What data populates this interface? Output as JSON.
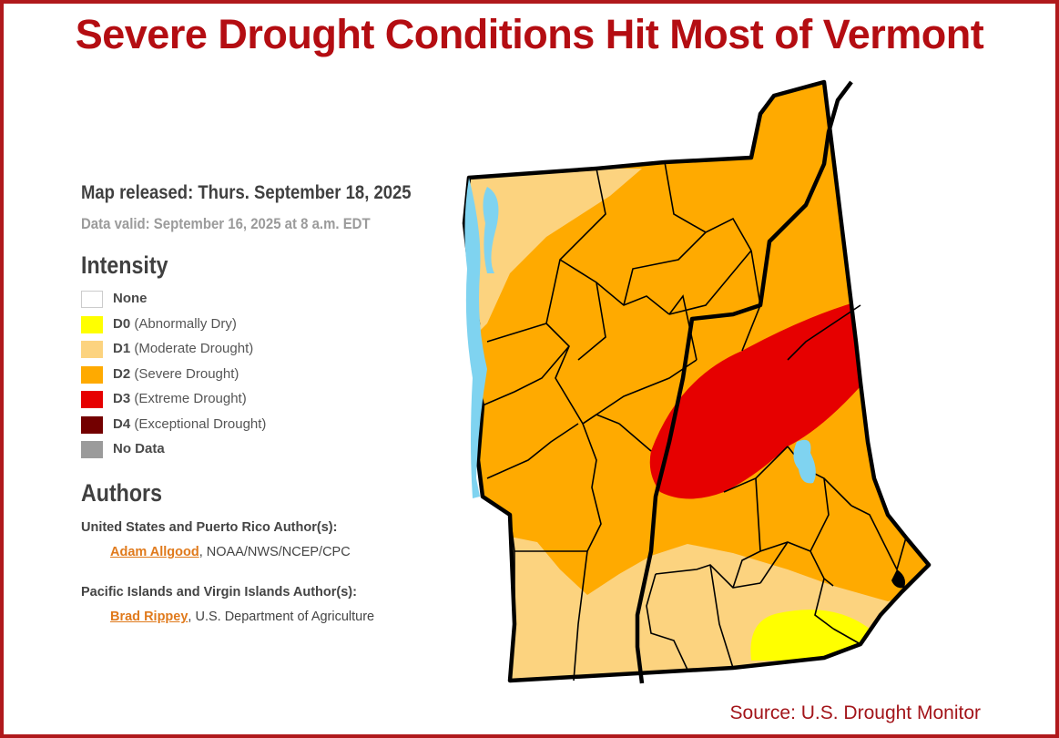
{
  "headline": "Severe Drought Conditions Hit Most of Vermont",
  "map_released": "Map released: Thurs. September 18, 2025",
  "data_valid": "Data valid: September 16, 2025 at 8 a.m. EDT",
  "intensity_title": "Intensity",
  "legend": [
    {
      "code": "None",
      "desc": "",
      "color": "#ffffff",
      "border": "#cccccc"
    },
    {
      "code": "D0",
      "desc": " (Abnormally Dry)",
      "color": "#ffff00",
      "border": "#ffff00"
    },
    {
      "code": "D1",
      "desc": " (Moderate Drought)",
      "color": "#fcd37f",
      "border": "#fcd37f"
    },
    {
      "code": "D2",
      "desc": " (Severe Drought)",
      "color": "#ffaa00",
      "border": "#ffaa00"
    },
    {
      "code": "D3",
      "desc": " (Extreme Drought)",
      "color": "#e60000",
      "border": "#e60000"
    },
    {
      "code": "D4",
      "desc": " (Exceptional Drought)",
      "color": "#730000",
      "border": "#730000"
    },
    {
      "code": "No Data",
      "desc": "",
      "color": "#9b9b9b",
      "border": "#9b9b9b"
    }
  ],
  "authors_title": "Authors",
  "authors": {
    "us_heading": "United States and Puerto Rico Author(s):",
    "us_name": "Adam Allgood",
    "us_org": ", NOAA/NWS/NCEP/CPC",
    "pacific_heading": "Pacific Islands and Virgin Islands Author(s):",
    "pacific_name": "Brad Rippey",
    "pacific_org": ", U.S. Department of Agriculture"
  },
  "source": "Source: U.S. Drought Monitor",
  "colors": {
    "frame": "#b0191c",
    "headline": "#b40d12",
    "water": "#7fd3f0",
    "border_line": "#000000"
  }
}
